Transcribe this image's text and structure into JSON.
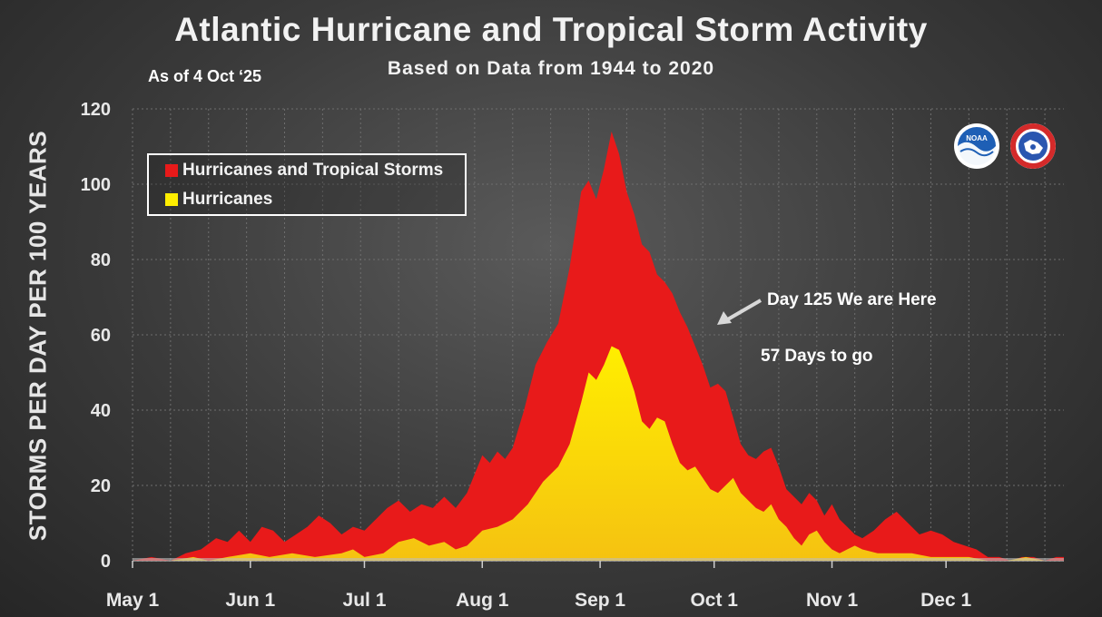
{
  "header": {
    "title": "Atlantic Hurricane and Tropical Storm Activity",
    "subtitle": "Based on Data from 1944 to 2020",
    "as_of": "As of 4 Oct ‘25"
  },
  "legend": {
    "items": [
      {
        "label": "Hurricanes and Tropical Storms",
        "color": "#e81a1a"
      },
      {
        "label": "Hurricanes",
        "color": "#ffee00"
      }
    ]
  },
  "annotations": {
    "pointer": "Day 125 We are Here",
    "remaining": "57 Days to go"
  },
  "logos": {
    "noaa_icon": "noaa-logo-icon",
    "noaa_text": "NOAA",
    "nws_icon": "nws-logo-icon"
  },
  "chart_data": {
    "type": "area",
    "ylabel": "STORMS PER DAY PER 100 YEARS",
    "xlabel": "",
    "ylim": [
      0,
      120
    ],
    "yticks": [
      0,
      20,
      40,
      60,
      80,
      100,
      120
    ],
    "xlim": [
      0,
      245
    ],
    "xticks": [
      {
        "label": "May 1",
        "day": 0
      },
      {
        "label": "Jun 1",
        "day": 31
      },
      {
        "label": "Jul 1",
        "day": 61
      },
      {
        "label": "Aug 1",
        "day": 92
      },
      {
        "label": "Sep 1",
        "day": 123
      },
      {
        "label": "Oct 1",
        "day": 153
      },
      {
        "label": "Nov 1",
        "day": 184
      },
      {
        "label": "Dec 1",
        "day": 214
      }
    ],
    "grid": true,
    "series": [
      {
        "name": "Hurricanes and Tropical Storms",
        "color": "#e81a1a",
        "x": [
          0,
          5,
          10,
          14,
          18,
          22,
          25,
          28,
          31,
          34,
          37,
          40,
          43,
          46,
          49,
          52,
          55,
          58,
          61,
          64,
          67,
          70,
          73,
          76,
          79,
          82,
          85,
          88,
          90,
          92,
          94,
          96,
          98,
          100,
          103,
          106,
          109,
          112,
          115,
          118,
          120,
          122,
          124,
          126,
          128,
          130,
          132,
          134,
          136,
          138,
          140,
          142,
          144,
          146,
          148,
          150,
          152,
          154,
          156,
          158,
          160,
          162,
          164,
          166,
          168,
          170,
          172,
          174,
          176,
          178,
          180,
          182,
          184,
          186,
          188,
          190,
          192,
          195,
          198,
          201,
          204,
          207,
          210,
          213,
          216,
          219,
          222,
          225,
          228,
          231,
          234,
          237,
          240,
          243,
          245
        ],
        "values": [
          0,
          1,
          0,
          2,
          3,
          6,
          5,
          8,
          5,
          9,
          8,
          5,
          7,
          9,
          12,
          10,
          7,
          9,
          8,
          11,
          14,
          16,
          13,
          15,
          14,
          17,
          14,
          18,
          23,
          28,
          26,
          29,
          27,
          30,
          40,
          52,
          58,
          63,
          78,
          98,
          101,
          96,
          104,
          114,
          108,
          98,
          92,
          84,
          82,
          76,
          74,
          71,
          66,
          62,
          57,
          52,
          46,
          47,
          45,
          38,
          31,
          28,
          27,
          29,
          30,
          25,
          19,
          17,
          15,
          18,
          16,
          12,
          15,
          11,
          9,
          7,
          6,
          8,
          11,
          13,
          10,
          7,
          8,
          7,
          5,
          4,
          3,
          1,
          1,
          0,
          1,
          1,
          0,
          1,
          1
        ]
      },
      {
        "name": "Hurricanes",
        "color": "#ffee00",
        "x": [
          0,
          10,
          16,
          20,
          25,
          31,
          36,
          42,
          48,
          55,
          58,
          61,
          66,
          70,
          74,
          78,
          82,
          85,
          88,
          92,
          96,
          100,
          104,
          108,
          112,
          115,
          118,
          120,
          122,
          124,
          126,
          128,
          130,
          132,
          134,
          136,
          138,
          140,
          142,
          144,
          146,
          148,
          150,
          152,
          154,
          156,
          158,
          160,
          162,
          164,
          166,
          168,
          170,
          172,
          174,
          176,
          178,
          180,
          182,
          184,
          186,
          188,
          190,
          192,
          196,
          200,
          205,
          210,
          215,
          220,
          225,
          230,
          235,
          240,
          245
        ],
        "values": [
          0,
          0,
          1,
          0,
          1,
          2,
          1,
          2,
          1,
          2,
          3,
          1,
          2,
          5,
          6,
          4,
          5,
          3,
          4,
          8,
          9,
          11,
          15,
          21,
          25,
          31,
          42,
          50,
          48,
          52,
          57,
          56,
          51,
          45,
          37,
          35,
          38,
          37,
          31,
          26,
          24,
          25,
          22,
          19,
          18,
          20,
          22,
          18,
          16,
          14,
          13,
          15,
          11,
          9,
          6,
          4,
          7,
          8,
          5,
          3,
          2,
          3,
          4,
          3,
          2,
          2,
          2,
          1,
          1,
          1,
          0,
          0,
          1,
          0,
          0
        ]
      }
    ]
  }
}
